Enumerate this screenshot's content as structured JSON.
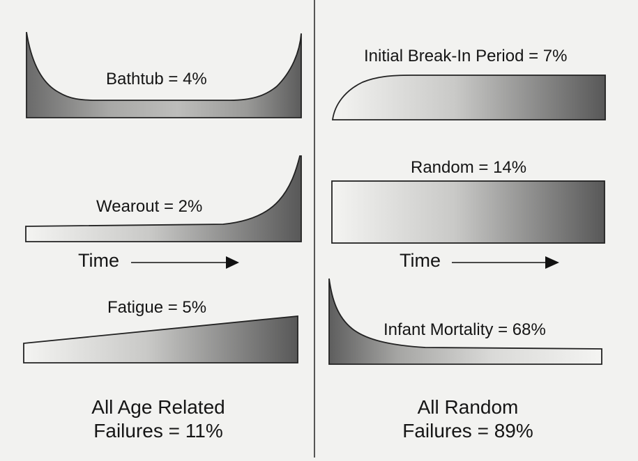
{
  "left_column": {
    "curves": [
      {
        "id": "bathtub",
        "label": "Bathtub = 4%"
      },
      {
        "id": "wearout",
        "label": "Wearout = 2%"
      },
      {
        "id": "fatigue",
        "label": "Fatigue = 5%"
      }
    ],
    "time_label": "Time",
    "summary_line1": "All Age Related",
    "summary_line2": "Failures = 11%"
  },
  "right_column": {
    "curves": [
      {
        "id": "initial-break-in",
        "label": "Initial Break-In Period = 7%"
      },
      {
        "id": "random",
        "label": "Random = 14%"
      },
      {
        "id": "infant-mortality",
        "label": "Infant Mortality = 68%"
      }
    ],
    "time_label": "Time",
    "summary_line1": "All Random",
    "summary_line2": "Failures = 89%"
  }
}
